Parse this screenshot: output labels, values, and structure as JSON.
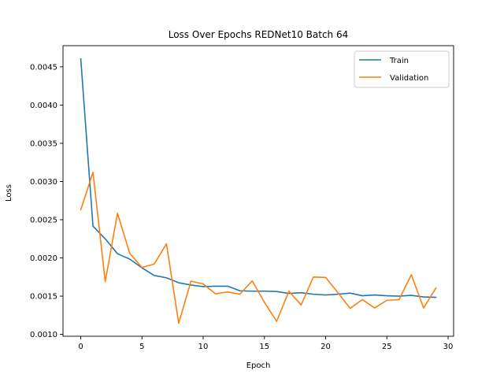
{
  "chart_data": {
    "type": "line",
    "title": "Loss Over Epochs REDNet10 Batch 64",
    "xlabel": "Epoch",
    "ylabel": "Loss",
    "xlim": [
      -1.45,
      30.45
    ],
    "ylim": [
      0.000975,
      0.004777
    ],
    "x_ticks": [
      0,
      5,
      10,
      15,
      20,
      25,
      30
    ],
    "x_tick_labels": [
      "0",
      "5",
      "10",
      "15",
      "20",
      "25",
      "30"
    ],
    "y_ticks": [
      0.001,
      0.0015,
      0.002,
      0.0025,
      0.003,
      0.0035,
      0.004,
      0.0045
    ],
    "y_tick_labels": [
      "0.0010",
      "0.0015",
      "0.0020",
      "0.0025",
      "0.0030",
      "0.0035",
      "0.0040",
      "0.0045"
    ],
    "grid": false,
    "legend_position": "top-right",
    "x": [
      0,
      1,
      2,
      3,
      4,
      5,
      6,
      7,
      8,
      9,
      10,
      11,
      12,
      13,
      14,
      15,
      16,
      17,
      18,
      19,
      20,
      21,
      22,
      23,
      24,
      25,
      26,
      27,
      28,
      29
    ],
    "series": [
      {
        "name": "Train",
        "color": "#1f77b4",
        "values": [
          0.004605,
          0.002415,
          0.00225,
          0.002055,
          0.001985,
          0.00187,
          0.00177,
          0.00174,
          0.001675,
          0.001645,
          0.001625,
          0.00163,
          0.00163,
          0.00157,
          0.001565,
          0.001565,
          0.00156,
          0.001535,
          0.001545,
          0.001525,
          0.001515,
          0.001525,
          0.00154,
          0.001505,
          0.001515,
          0.001505,
          0.0015,
          0.00151,
          0.00149,
          0.001485
        ]
      },
      {
        "name": "Validation",
        "color": "#ff7f0e",
        "values": [
          0.00263,
          0.00312,
          0.00169,
          0.002585,
          0.00206,
          0.001875,
          0.00192,
          0.002185,
          0.001145,
          0.001695,
          0.00166,
          0.00153,
          0.001555,
          0.001525,
          0.0017,
          0.00142,
          0.00117,
          0.001565,
          0.001385,
          0.00175,
          0.001745,
          0.001545,
          0.00134,
          0.001455,
          0.001345,
          0.001445,
          0.001455,
          0.00178,
          0.001345,
          0.001605
        ]
      }
    ]
  }
}
